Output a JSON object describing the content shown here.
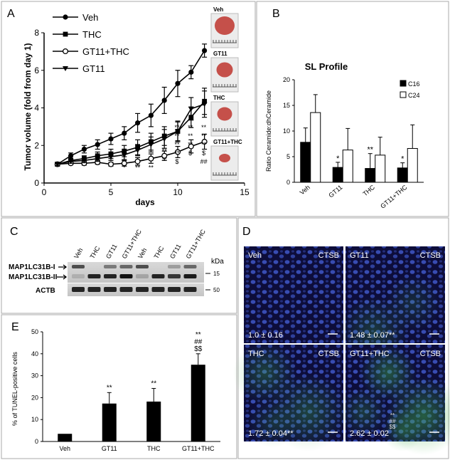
{
  "panels": {
    "A": "A",
    "B": "B",
    "C": "C",
    "D": "D",
    "E": "E"
  },
  "chart_data": [
    {
      "panel": "A",
      "type": "line",
      "xlabel": "days",
      "ylabel": "Tumor volume  (fold from day 1)",
      "xlim": [
        0,
        15
      ],
      "ylim": [
        0,
        8
      ],
      "xticks": [
        0,
        5,
        10,
        15
      ],
      "yticks": [
        0,
        2,
        4,
        6,
        8
      ],
      "legend": "top-left",
      "series": [
        {
          "name": "Veh",
          "marker": "circle-filled",
          "x": [
            1,
            2,
            3,
            4,
            5,
            6,
            7,
            8,
            9,
            10,
            11,
            12
          ],
          "y": [
            1.0,
            1.45,
            1.8,
            2.05,
            2.35,
            2.65,
            3.2,
            3.6,
            4.4,
            5.3,
            5.9,
            7.05
          ],
          "err": [
            0.1,
            0.15,
            0.2,
            0.25,
            0.3,
            0.35,
            0.5,
            0.6,
            0.7,
            0.7,
            0.35,
            0.35
          ]
        },
        {
          "name": "THC",
          "marker": "square-filled",
          "x": [
            1,
            2,
            3,
            4,
            5,
            6,
            7,
            8,
            9,
            10,
            11,
            12
          ],
          "y": [
            1.0,
            1.2,
            1.3,
            1.45,
            1.55,
            1.7,
            1.9,
            2.2,
            2.5,
            2.75,
            3.5,
            4.35
          ],
          "err": [
            0.08,
            0.12,
            0.15,
            0.2,
            0.25,
            0.3,
            0.4,
            0.45,
            0.5,
            0.5,
            0.55,
            0.7
          ]
        },
        {
          "name": "GT11+THC",
          "marker": "circle-open",
          "x": [
            1,
            2,
            3,
            4,
            5,
            6,
            7,
            8,
            9,
            10,
            11,
            12
          ],
          "y": [
            1.0,
            1.05,
            1.05,
            1.1,
            1.0,
            1.05,
            1.15,
            1.3,
            1.45,
            1.65,
            1.95,
            2.2
          ],
          "err": [
            0.05,
            0.08,
            0.1,
            0.1,
            0.1,
            0.15,
            0.2,
            0.25,
            0.25,
            0.3,
            0.35,
            0.4
          ]
        },
        {
          "name": "GT11",
          "marker": "triangle-down-filled",
          "x": [
            1,
            2,
            3,
            4,
            5,
            6,
            7,
            8,
            9,
            10,
            11,
            12
          ],
          "y": [
            1.0,
            1.15,
            1.2,
            1.3,
            1.4,
            1.5,
            1.75,
            2.05,
            2.35,
            2.75,
            3.95,
            4.2
          ],
          "err": [
            0.08,
            0.1,
            0.12,
            0.15,
            0.2,
            0.25,
            0.3,
            0.4,
            0.5,
            0.55,
            0.6,
            0.7
          ]
        }
      ],
      "annotations": [
        {
          "x": 6,
          "rows": [
            "*"
          ]
        },
        {
          "x": 7,
          "rows": [
            "**"
          ]
        },
        {
          "x": 8,
          "rows": [
            "**"
          ]
        },
        {
          "x": 9,
          "rows": [
            "**",
            "**"
          ]
        },
        {
          "x": 10,
          "rows": [
            "**",
            "**",
            "**",
            "**",
            "$"
          ]
        },
        {
          "x": 11,
          "rows": [
            "**",
            "**",
            "**",
            "$"
          ]
        },
        {
          "x": 12,
          "rows": [
            "**",
            "**",
            "**",
            "$",
            "##"
          ]
        }
      ],
      "photo_labels": [
        "Veh",
        "GT11",
        "THC",
        "GT11+THC"
      ]
    },
    {
      "panel": "B",
      "type": "bar",
      "title": "SL Profile",
      "ylabel": "Ratio Ceramide:dhCeramide",
      "categories": [
        "Veh",
        "GT11",
        "THC",
        "GT11+THC"
      ],
      "ylim": [
        0,
        20
      ],
      "yticks": [
        0,
        5,
        10,
        15,
        20
      ],
      "legend": "top-right",
      "series": [
        {
          "name": "C16",
          "fill": "#000000",
          "values": [
            7.8,
            2.9,
            2.7,
            2.8
          ],
          "err": [
            2.8,
            1.0,
            2.9,
            1.0
          ]
        },
        {
          "name": "C24",
          "fill": "#ffffff",
          "values": [
            13.6,
            6.3,
            5.3,
            6.6
          ],
          "err": [
            3.5,
            4.2,
            3.5,
            4.6
          ]
        }
      ],
      "significance": [
        "",
        "*",
        "**",
        "*"
      ]
    },
    {
      "panel": "E",
      "type": "bar",
      "ylabel": "% of TUNEL-positive cells",
      "categories": [
        "Veh",
        "GT11",
        "THC",
        "GT11+THC"
      ],
      "values": [
        3.5,
        17.3,
        18.2,
        35
      ],
      "err": [
        0,
        5,
        6,
        5
      ],
      "ylim": [
        0,
        50
      ],
      "yticks": [
        0,
        10,
        20,
        30,
        40,
        50
      ],
      "significance": [
        [],
        [
          "**"
        ],
        [
          "**"
        ],
        [
          "**",
          "##",
          "$$"
        ]
      ]
    }
  ],
  "western": {
    "lanes": [
      "Veh",
      "THC",
      "GT11",
      "GT11+THC",
      "Veh",
      "THC",
      "GT11",
      "GT11+THC"
    ],
    "band_labels": [
      "MAP1LC31B-I",
      "MAP1LC31B-II",
      "ACTB"
    ],
    "kda_label": "kDa",
    "markers": [
      "15",
      "50"
    ]
  },
  "micrographs": [
    {
      "label": "Veh",
      "stain": "CTSB",
      "value": "1.0 ± 0.16",
      "marks": []
    },
    {
      "label": "GT11",
      "stain": "CTSB",
      "value": "1.48 ± 0.07**",
      "marks": []
    },
    {
      "label": "THC",
      "stain": "CTSB",
      "value": "1.72 ± 0.04**",
      "marks": []
    },
    {
      "label": "GT11+THC",
      "stain": "CTSB",
      "value": "2.62 ± 0.02",
      "marks": [
        "**",
        "##",
        "$$"
      ]
    }
  ],
  "colors": {
    "panel_border": "#aaaaaa",
    "micrograph_bg": "#0d0d3a",
    "nuclei": "#3a4fb8",
    "ctsb": "#3fae4a",
    "tumor": "#c5504a"
  }
}
